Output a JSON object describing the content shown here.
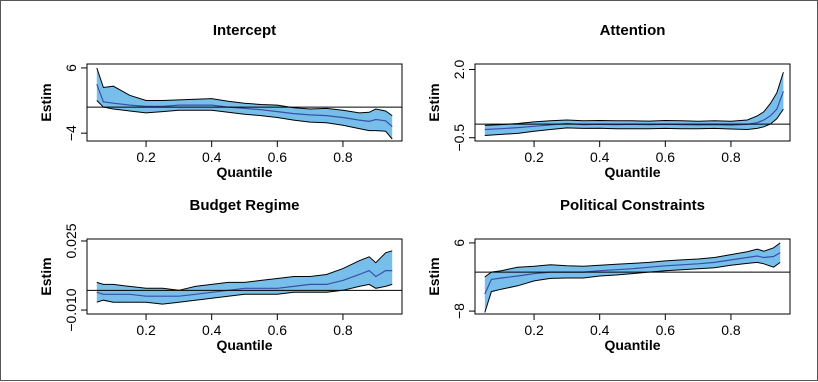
{
  "chart_data": [
    {
      "type": "line",
      "title": "Intercept",
      "xlabel": "Quantile",
      "ylabel": "Estim",
      "xlim": [
        0.02,
        0.98
      ],
      "ylim": [
        -5.2,
        6.6
      ],
      "xticks": [
        0.2,
        0.4,
        0.6,
        0.8
      ],
      "yticks": [
        6,
        -4
      ],
      "ytick_labels": [
        "6",
        "−4"
      ],
      "hline": 0,
      "series": [
        {
          "x": [
            0.05,
            0.07,
            0.1,
            0.15,
            0.2,
            0.25,
            0.3,
            0.35,
            0.4,
            0.45,
            0.5,
            0.55,
            0.6,
            0.65,
            0.7,
            0.75,
            0.8,
            0.85,
            0.88,
            0.9,
            0.93,
            0.95
          ],
          "y": [
            3.5,
            0.8,
            0.6,
            0.3,
            0.1,
            0.1,
            0.3,
            0.3,
            0.3,
            0.0,
            -0.2,
            -0.4,
            -0.7,
            -1.0,
            -1.2,
            -1.3,
            -1.6,
            -2.0,
            -2.2,
            -1.9,
            -2.1,
            -3.0
          ],
          "lower": [
            1.0,
            0.0,
            -0.3,
            -0.6,
            -0.9,
            -0.7,
            -0.5,
            -0.5,
            -0.5,
            -0.8,
            -1.1,
            -1.3,
            -1.6,
            -2.0,
            -2.3,
            -2.4,
            -2.8,
            -3.3,
            -3.6,
            -3.6,
            -3.7,
            -4.9
          ],
          "upper": [
            6.0,
            3.0,
            3.2,
            1.8,
            1.0,
            1.0,
            1.1,
            1.2,
            1.3,
            0.9,
            0.6,
            0.4,
            0.3,
            -0.1,
            -0.3,
            -0.2,
            -0.5,
            -0.9,
            -0.8,
            -0.3,
            -0.6,
            -1.3
          ]
        }
      ]
    },
    {
      "type": "line",
      "title": "Attention",
      "xlabel": "Quantile",
      "ylabel": "Estim",
      "xlim": [
        0.02,
        0.98
      ],
      "ylim": [
        -0.62,
        2.2
      ],
      "xticks": [
        0.2,
        0.4,
        0.6,
        0.8
      ],
      "yticks": [
        2.0,
        -0.5
      ],
      "ytick_labels": [
        "2.0",
        "−0.5"
      ],
      "hline": 0,
      "series": [
        {
          "x": [
            0.05,
            0.1,
            0.15,
            0.2,
            0.25,
            0.3,
            0.35,
            0.4,
            0.45,
            0.5,
            0.55,
            0.6,
            0.65,
            0.7,
            0.75,
            0.8,
            0.85,
            0.88,
            0.9,
            0.92,
            0.94,
            0.96
          ],
          "y": [
            -0.2,
            -0.17,
            -0.13,
            -0.08,
            -0.03,
            0.02,
            -0.02,
            -0.01,
            -0.02,
            -0.01,
            -0.02,
            -0.01,
            -0.02,
            -0.03,
            -0.02,
            -0.04,
            -0.01,
            0.05,
            0.15,
            0.3,
            0.55,
            1.2
          ],
          "lower": [
            -0.42,
            -0.38,
            -0.34,
            -0.26,
            -0.2,
            -0.14,
            -0.16,
            -0.15,
            -0.17,
            -0.17,
            -0.17,
            -0.16,
            -0.17,
            -0.17,
            -0.16,
            -0.18,
            -0.2,
            -0.16,
            -0.1,
            0.0,
            0.2,
            0.55
          ],
          "upper": [
            -0.05,
            -0.02,
            0.02,
            0.08,
            0.12,
            0.15,
            0.12,
            0.13,
            0.12,
            0.12,
            0.11,
            0.13,
            0.12,
            0.1,
            0.12,
            0.1,
            0.15,
            0.3,
            0.45,
            0.75,
            1.15,
            1.9
          ]
        }
      ]
    },
    {
      "type": "line",
      "title": "Budget Regime",
      "xlabel": "Quantile",
      "ylabel": "Estim",
      "xlim": [
        0.02,
        0.98
      ],
      "ylim": [
        -0.012,
        0.026
      ],
      "xticks": [
        0.2,
        0.4,
        0.6,
        0.8
      ],
      "yticks": [
        0.025,
        -0.01
      ],
      "ytick_labels": [
        "0.025",
        "−0.010"
      ],
      "hline": 0,
      "series": [
        {
          "x": [
            0.05,
            0.07,
            0.1,
            0.15,
            0.2,
            0.25,
            0.3,
            0.35,
            0.4,
            0.45,
            0.5,
            0.55,
            0.6,
            0.65,
            0.7,
            0.75,
            0.8,
            0.85,
            0.88,
            0.9,
            0.93,
            0.95
          ],
          "y": [
            -0.001,
            -0.002,
            -0.002,
            -0.002,
            -0.003,
            -0.003,
            -0.003,
            -0.002,
            -0.001,
            0.0,
            0.001,
            0.001,
            0.001,
            0.002,
            0.003,
            0.003,
            0.005,
            0.008,
            0.01,
            0.007,
            0.01,
            0.01
          ],
          "lower": [
            -0.006,
            -0.005,
            -0.006,
            -0.006,
            -0.006,
            -0.007,
            -0.006,
            -0.005,
            -0.004,
            -0.003,
            -0.002,
            -0.002,
            -0.002,
            -0.001,
            -0.001,
            -0.001,
            0.0,
            0.002,
            0.003,
            0.001,
            0.002,
            0.003
          ],
          "upper": [
            0.004,
            0.003,
            0.003,
            0.002,
            0.001,
            0.001,
            0.0,
            0.002,
            0.003,
            0.004,
            0.004,
            0.005,
            0.006,
            0.007,
            0.007,
            0.008,
            0.011,
            0.015,
            0.017,
            0.014,
            0.019,
            0.02
          ]
        }
      ]
    },
    {
      "type": "line",
      "title": "Political Constraints",
      "xlabel": "Quantile",
      "ylabel": "Estim",
      "xlim": [
        0.02,
        0.98
      ],
      "ylim": [
        -8.6,
        6.8
      ],
      "xticks": [
        0.2,
        0.4,
        0.6,
        0.8
      ],
      "yticks": [
        6,
        -8
      ],
      "ytick_labels": [
        "6",
        "−8"
      ],
      "hline": 0,
      "series": [
        {
          "x": [
            0.05,
            0.07,
            0.1,
            0.15,
            0.2,
            0.25,
            0.3,
            0.35,
            0.4,
            0.45,
            0.5,
            0.55,
            0.6,
            0.65,
            0.7,
            0.75,
            0.8,
            0.85,
            0.88,
            0.9,
            0.93,
            0.95
          ],
          "y": [
            -4.5,
            -1.5,
            -1.2,
            -0.8,
            -0.3,
            0.0,
            0.0,
            0.0,
            0.3,
            0.5,
            0.7,
            1.0,
            1.3,
            1.5,
            1.7,
            2.0,
            2.5,
            3.0,
            3.3,
            3.0,
            3.2,
            4.0
          ],
          "lower": [
            -8.3,
            -4.0,
            -3.5,
            -2.8,
            -1.8,
            -1.3,
            -1.2,
            -1.2,
            -0.8,
            -0.6,
            -0.3,
            0.0,
            0.3,
            0.5,
            0.7,
            0.9,
            1.4,
            1.8,
            2.0,
            1.7,
            1.0,
            2.0
          ],
          "upper": [
            -1.0,
            0.0,
            0.3,
            1.0,
            1.2,
            1.5,
            1.3,
            1.2,
            1.4,
            1.6,
            1.8,
            2.0,
            2.3,
            2.5,
            2.7,
            3.0,
            3.6,
            4.2,
            4.7,
            4.3,
            5.0,
            6.0
          ]
        }
      ]
    }
  ]
}
